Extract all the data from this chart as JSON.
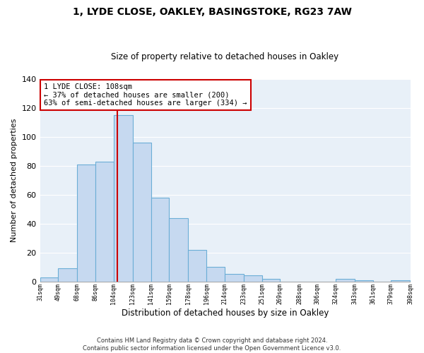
{
  "title": "1, LYDE CLOSE, OAKLEY, BASINGSTOKE, RG23 7AW",
  "subtitle": "Size of property relative to detached houses in Oakley",
  "xlabel": "Distribution of detached houses by size in Oakley",
  "ylabel": "Number of detached properties",
  "bar_edges": [
    31,
    49,
    68,
    86,
    104,
    123,
    141,
    159,
    178,
    196,
    214,
    233,
    251,
    269,
    288,
    306,
    324,
    343,
    361,
    379,
    398
  ],
  "bar_heights": [
    3,
    9,
    81,
    83,
    115,
    96,
    58,
    44,
    22,
    10,
    5,
    4,
    2,
    0,
    0,
    0,
    2,
    1,
    0,
    1
  ],
  "bar_color": "#c6d9f0",
  "bar_edgecolor": "#6baed6",
  "vline_x": 108,
  "vline_color": "#cc0000",
  "annotation_text": "1 LYDE CLOSE: 108sqm\n← 37% of detached houses are smaller (200)\n63% of semi-detached houses are larger (334) →",
  "annotation_box_edgecolor": "#cc0000",
  "ylim": [
    0,
    140
  ],
  "yticks": [
    0,
    20,
    40,
    60,
    80,
    100,
    120,
    140
  ],
  "tick_labels": [
    "31sqm",
    "49sqm",
    "68sqm",
    "86sqm",
    "104sqm",
    "123sqm",
    "141sqm",
    "159sqm",
    "178sqm",
    "196sqm",
    "214sqm",
    "233sqm",
    "251sqm",
    "269sqm",
    "288sqm",
    "306sqm",
    "324sqm",
    "343sqm",
    "361sqm",
    "379sqm",
    "398sqm"
  ],
  "footer": "Contains HM Land Registry data © Crown copyright and database right 2024.\nContains public sector information licensed under the Open Government Licence v3.0.",
  "background_color": "#ffffff",
  "plot_bg_color": "#e8f0f8",
  "grid_color": "#ffffff"
}
